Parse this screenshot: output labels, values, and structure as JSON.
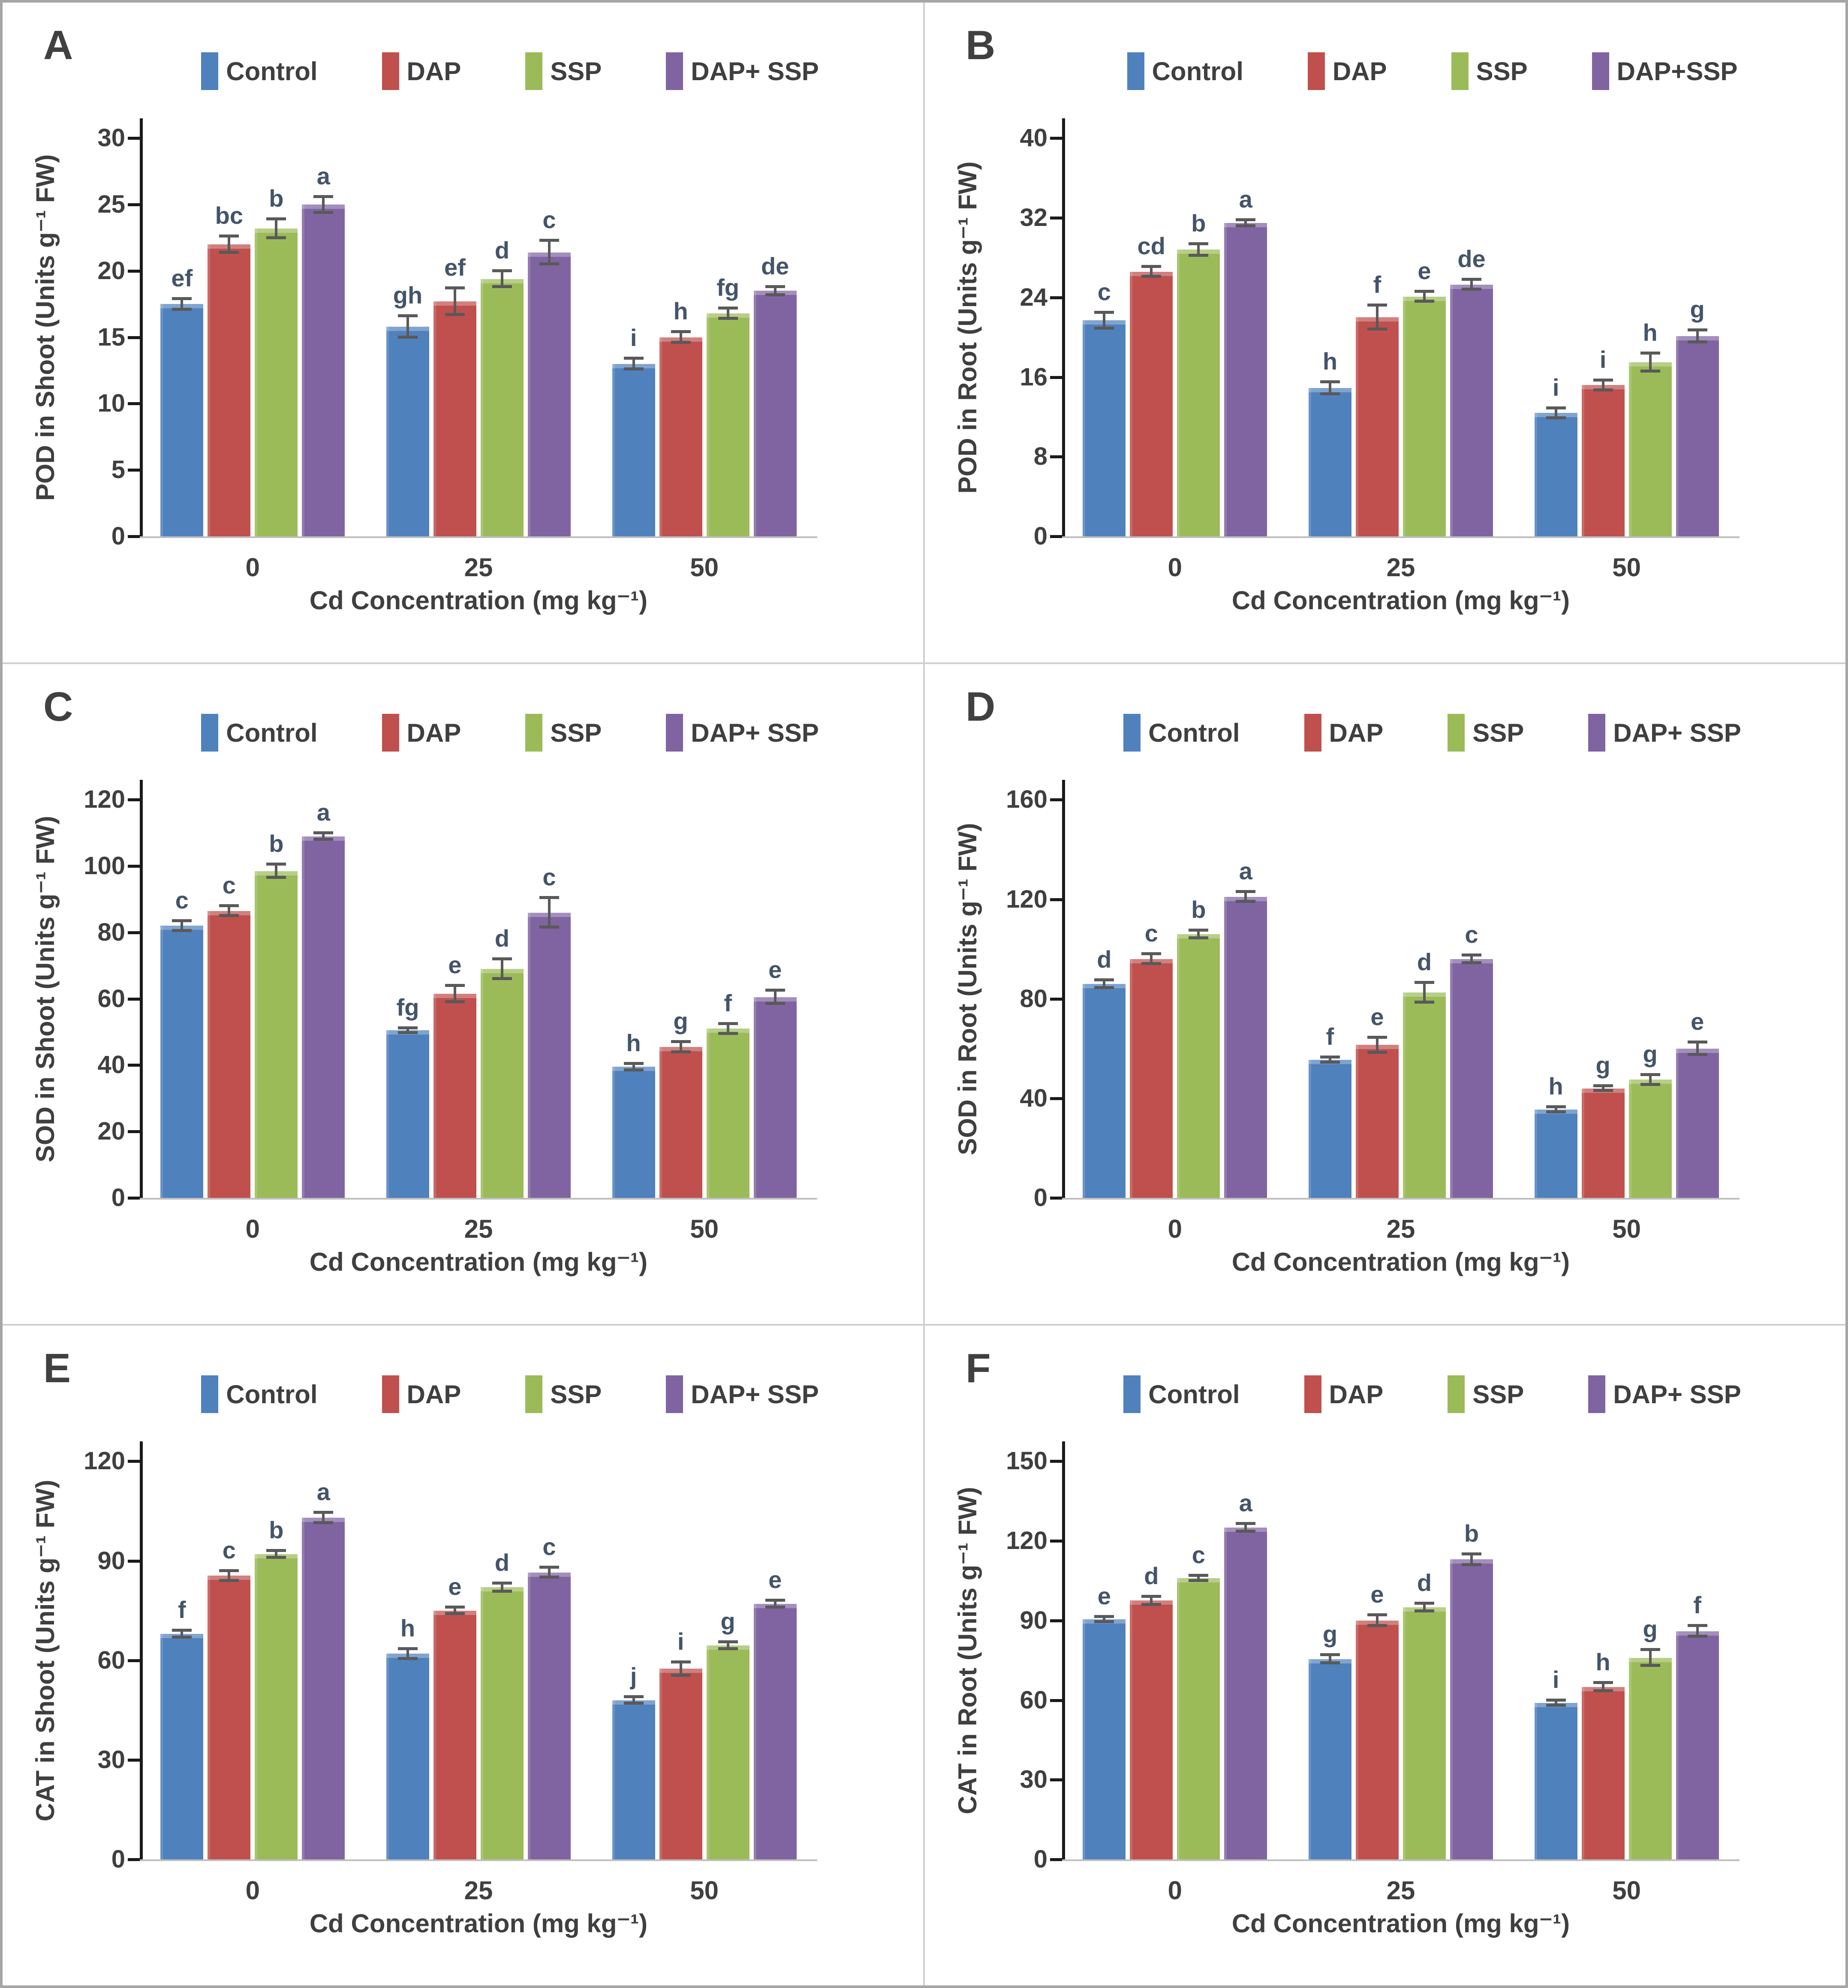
{
  "figure_title": "",
  "colors": {
    "control": "#4F81BD",
    "dap": "#C0504D",
    "ssp": "#9BBB59",
    "dap_ssp": "#8064A2",
    "axis": "#1a1a1a",
    "baseline": "#bfbfbf",
    "error_bar": "#595959",
    "sig_letters": "#44546A",
    "text": "#3f3f3f",
    "outer_border": "#a6a6a6",
    "panel_divider": "#cfcfcf"
  },
  "chart_data": [
    {
      "panel": "A",
      "type": "bar",
      "y_label": "POD in Shoot (Units g⁻¹ FW)",
      "x_label": "Cd Concentration (mg kg⁻¹)",
      "categories": [
        "0",
        "25",
        "50"
      ],
      "y_ticks": [
        0,
        5,
        10,
        15,
        20,
        25,
        30
      ],
      "ylim": [
        0,
        30
      ],
      "legend_position": "top",
      "grid": false,
      "series": [
        {
          "name": "Control",
          "color": "#4F81BD",
          "values": [
            17.5,
            15.8,
            13.0
          ],
          "errors": [
            0.4,
            0.8,
            0.4
          ],
          "letters": [
            "ef",
            "gh",
            "i"
          ]
        },
        {
          "name": "DAP",
          "color": "#C0504D",
          "values": [
            22.0,
            17.7,
            15.0
          ],
          "errors": [
            0.6,
            1.0,
            0.4
          ],
          "letters": [
            "bc",
            "ef",
            "h"
          ]
        },
        {
          "name": "SSP",
          "color": "#9BBB59",
          "values": [
            23.2,
            19.4,
            16.8
          ],
          "errors": [
            0.7,
            0.6,
            0.4
          ],
          "letters": [
            "b",
            "d",
            "fg"
          ]
        },
        {
          "name": "DAP+ SSP",
          "color": "#8064A2",
          "values": [
            25.0,
            21.4,
            18.5
          ],
          "errors": [
            0.6,
            0.9,
            0.3
          ],
          "letters": [
            "a",
            "c",
            "de"
          ]
        }
      ]
    },
    {
      "panel": "B",
      "type": "bar",
      "y_label": "POD in Root (Units g⁻¹ FW)",
      "x_label": "Cd Concentration (mg kg⁻¹)",
      "categories": [
        "0",
        "25",
        "50"
      ],
      "y_ticks": [
        0,
        8,
        16,
        24,
        32,
        40
      ],
      "ylim": [
        0,
        40
      ],
      "legend_position": "top",
      "grid": false,
      "series": [
        {
          "name": "Control",
          "color": "#4F81BD",
          "values": [
            21.7,
            14.9,
            12.4
          ],
          "errors": [
            0.8,
            0.6,
            0.5
          ],
          "letters": [
            "c",
            "h",
            "i"
          ]
        },
        {
          "name": "DAP",
          "color": "#C0504D",
          "values": [
            26.6,
            22.0,
            15.2
          ],
          "errors": [
            0.5,
            1.2,
            0.5
          ],
          "letters": [
            "cd",
            "f",
            "i"
          ]
        },
        {
          "name": "SSP",
          "color": "#9BBB59",
          "values": [
            28.8,
            24.1,
            17.5
          ],
          "errors": [
            0.6,
            0.5,
            0.9
          ],
          "letters": [
            "b",
            "e",
            "h"
          ]
        },
        {
          "name": "DAP+SSP",
          "color": "#8064A2",
          "values": [
            31.5,
            25.3,
            20.1
          ],
          "errors": [
            0.3,
            0.5,
            0.6
          ],
          "letters": [
            "a",
            "de",
            "g"
          ]
        }
      ]
    },
    {
      "panel": "C",
      "type": "bar",
      "y_label": "SOD in Shoot (Units g⁻¹ FW)",
      "x_label": "Cd Concentration (mg kg⁻¹)",
      "categories": [
        "0",
        "25",
        "50"
      ],
      "y_ticks": [
        0,
        20,
        40,
        60,
        80,
        100,
        120
      ],
      "ylim": [
        0,
        120
      ],
      "legend_position": "top",
      "grid": false,
      "series": [
        {
          "name": "Control",
          "color": "#4F81BD",
          "values": [
            82.0,
            50.5,
            39.5
          ],
          "errors": [
            1.5,
            0.7,
            1.0
          ],
          "letters": [
            "c",
            "fg",
            "h"
          ]
        },
        {
          "name": "DAP",
          "color": "#C0504D",
          "values": [
            86.5,
            61.5,
            45.5
          ],
          "errors": [
            1.5,
            2.5,
            1.5
          ],
          "letters": [
            "c",
            "e",
            "g"
          ]
        },
        {
          "name": "SSP",
          "color": "#9BBB59",
          "values": [
            98.5,
            69.0,
            51.0
          ],
          "errors": [
            2.0,
            3.0,
            1.5
          ],
          "letters": [
            "b",
            "d",
            "f"
          ]
        },
        {
          "name": "DAP+ SSP",
          "color": "#8064A2",
          "values": [
            109.0,
            86.0,
            60.5
          ],
          "errors": [
            1.0,
            4.5,
            2.0
          ],
          "letters": [
            "a",
            "c",
            "e"
          ]
        }
      ]
    },
    {
      "panel": "D",
      "type": "bar",
      "y_label": "SOD in Root (Units g⁻¹ FW)",
      "x_label": "Cd Concentration (mg kg⁻¹)",
      "categories": [
        "0",
        "25",
        "50"
      ],
      "y_ticks": [
        0,
        40,
        80,
        120,
        160
      ],
      "ylim": [
        0,
        160
      ],
      "legend_position": "top",
      "grid": false,
      "series": [
        {
          "name": "Control",
          "color": "#4F81BD",
          "values": [
            86.0,
            55.5,
            35.5
          ],
          "errors": [
            1.5,
            1.0,
            1.0
          ],
          "letters": [
            "d",
            "f",
            "h"
          ]
        },
        {
          "name": "DAP",
          "color": "#C0504D",
          "values": [
            96.0,
            61.5,
            44.0
          ],
          "errors": [
            2.0,
            3.0,
            1.0
          ],
          "letters": [
            "c",
            "e",
            "g"
          ]
        },
        {
          "name": "SSP",
          "color": "#9BBB59",
          "values": [
            106.0,
            82.5,
            47.5
          ],
          "errors": [
            1.5,
            4.0,
            2.0
          ],
          "letters": [
            "b",
            "d",
            "g"
          ]
        },
        {
          "name": "DAP+ SSP",
          "color": "#8064A2",
          "values": [
            121.0,
            96.0,
            60.0
          ],
          "errors": [
            2.0,
            1.5,
            2.5
          ],
          "letters": [
            "a",
            "c",
            "e"
          ]
        }
      ]
    },
    {
      "panel": "E",
      "type": "bar",
      "y_label": "CAT in Shoot (Units g⁻¹ FW)",
      "x_label": "Cd Concentration (mg kg⁻¹)",
      "categories": [
        "0",
        "25",
        "50"
      ],
      "y_ticks": [
        0,
        30,
        60,
        90,
        120
      ],
      "ylim": [
        0,
        120
      ],
      "legend_position": "top",
      "grid": false,
      "series": [
        {
          "name": "Control",
          "color": "#4F81BD",
          "values": [
            68.0,
            62.0,
            48.0
          ],
          "errors": [
            1.0,
            1.5,
            1.0
          ],
          "letters": [
            "f",
            "h",
            "j"
          ]
        },
        {
          "name": "DAP",
          "color": "#C0504D",
          "values": [
            85.5,
            75.0,
            57.5
          ],
          "errors": [
            1.5,
            1.0,
            2.0
          ],
          "letters": [
            "c",
            "e",
            "i"
          ]
        },
        {
          "name": "SSP",
          "color": "#9BBB59",
          "values": [
            92.0,
            82.0,
            64.5
          ],
          "errors": [
            1.0,
            1.2,
            1.0
          ],
          "letters": [
            "b",
            "d",
            "g"
          ]
        },
        {
          "name": "DAP+ SSP",
          "color": "#8064A2",
          "values": [
            103.0,
            86.5,
            77.0
          ],
          "errors": [
            1.5,
            1.5,
            1.0
          ],
          "letters": [
            "a",
            "c",
            "e"
          ]
        }
      ]
    },
    {
      "panel": "F",
      "type": "bar",
      "y_label": "CAT in Root (Units g⁻¹ FW)",
      "x_label": "Cd Concentration (mg kg⁻¹)",
      "categories": [
        "0",
        "25",
        "50"
      ],
      "y_ticks": [
        0,
        30,
        60,
        90,
        120,
        150
      ],
      "ylim": [
        0,
        150
      ],
      "legend_position": "top",
      "grid": false,
      "series": [
        {
          "name": "Control",
          "color": "#4F81BD",
          "values": [
            90.5,
            75.5,
            59.0
          ],
          "errors": [
            1.0,
            1.5,
            1.0
          ],
          "letters": [
            "e",
            "g",
            "i"
          ]
        },
        {
          "name": "DAP",
          "color": "#C0504D",
          "values": [
            97.5,
            90.0,
            65.0
          ],
          "errors": [
            1.5,
            2.0,
            1.5
          ],
          "letters": [
            "d",
            "e",
            "h"
          ]
        },
        {
          "name": "SSP",
          "color": "#9BBB59",
          "values": [
            106.0,
            95.0,
            76.0
          ],
          "errors": [
            1.0,
            1.5,
            3.0
          ],
          "letters": [
            "c",
            "d",
            "g"
          ]
        },
        {
          "name": "DAP+ SSP",
          "color": "#8064A2",
          "values": [
            125.0,
            113.0,
            86.0
          ],
          "errors": [
            1.5,
            2.0,
            2.0
          ],
          "letters": [
            "a",
            "b",
            "f"
          ]
        }
      ]
    }
  ]
}
